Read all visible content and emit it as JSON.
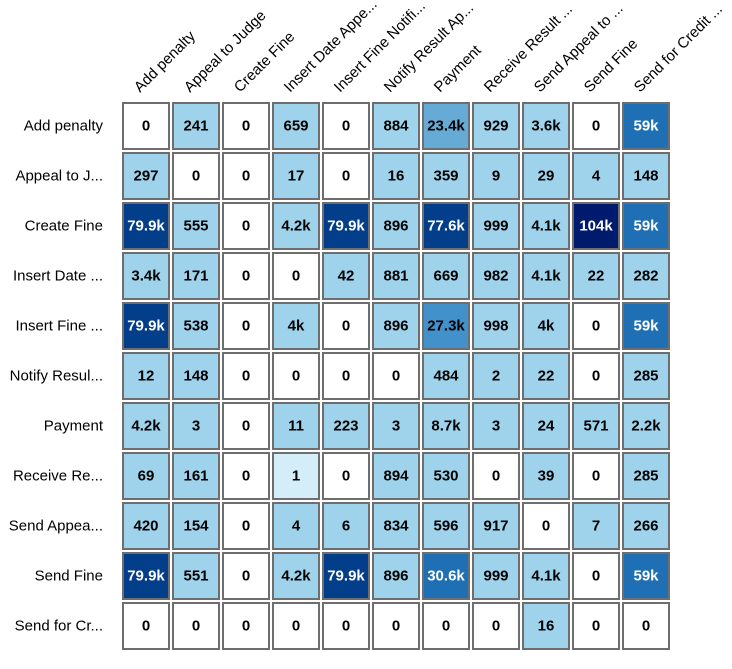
{
  "chart_data": {
    "type": "heatmap",
    "columns": [
      "Add penalty",
      "Appeal to Judge",
      "Create Fine",
      "Insert Date Appe...",
      "Insert Fine Notifi...",
      "Notify Result Ap...",
      "Payment",
      "Receive Result ...",
      "Send Appeal to ...",
      "Send Fine",
      "Send for Credit ..."
    ],
    "rows": [
      "Add penalty",
      "Appeal to J...",
      "Create Fine",
      "Insert Date ...",
      "Insert Fine ...",
      "Notify Resul...",
      "Payment",
      "Receive Re...",
      "Send Appea...",
      "Send Fine",
      "Send for Cr..."
    ],
    "values": [
      [
        0,
        241,
        0,
        659,
        0,
        884,
        23400,
        929,
        3600,
        0,
        59000
      ],
      [
        297,
        0,
        0,
        17,
        0,
        16,
        359,
        9,
        29,
        4,
        148
      ],
      [
        79900,
        555,
        0,
        4200,
        79900,
        896,
        77600,
        999,
        4100,
        104000,
        59000
      ],
      [
        3400,
        171,
        0,
        0,
        42,
        881,
        669,
        982,
        4100,
        22,
        282
      ],
      [
        79900,
        538,
        0,
        4000,
        0,
        896,
        27300,
        998,
        4000,
        0,
        59000
      ],
      [
        12,
        148,
        0,
        0,
        0,
        0,
        484,
        2,
        22,
        0,
        285
      ],
      [
        4200,
        3,
        0,
        11,
        223,
        3,
        8700,
        3,
        24,
        571,
        2200
      ],
      [
        69,
        161,
        0,
        1,
        0,
        894,
        530,
        0,
        39,
        0,
        285
      ],
      [
        420,
        154,
        0,
        4,
        6,
        834,
        596,
        917,
        0,
        7,
        266
      ],
      [
        79900,
        551,
        0,
        4200,
        79900,
        896,
        30600,
        999,
        4100,
        0,
        59000
      ],
      [
        0,
        0,
        0,
        0,
        0,
        0,
        0,
        0,
        16,
        0,
        0
      ]
    ],
    "labels": [
      [
        "0",
        "241",
        "0",
        "659",
        "0",
        "884",
        "23.4k",
        "929",
        "3.6k",
        "0",
        "59k"
      ],
      [
        "297",
        "0",
        "0",
        "17",
        "0",
        "16",
        "359",
        "9",
        "29",
        "4",
        "148"
      ],
      [
        "79.9k",
        "555",
        "0",
        "4.2k",
        "79.9k",
        "896",
        "77.6k",
        "999",
        "4.1k",
        "104k",
        "59k"
      ],
      [
        "3.4k",
        "171",
        "0",
        "0",
        "42",
        "881",
        "669",
        "982",
        "4.1k",
        "22",
        "282"
      ],
      [
        "79.9k",
        "538",
        "0",
        "4k",
        "0",
        "896",
        "27.3k",
        "998",
        "4k",
        "0",
        "59k"
      ],
      [
        "12",
        "148",
        "0",
        "0",
        "0",
        "0",
        "484",
        "2",
        "22",
        "0",
        "285"
      ],
      [
        "4.2k",
        "3",
        "0",
        "11",
        "223",
        "3",
        "8.7k",
        "3",
        "24",
        "571",
        "2.2k"
      ],
      [
        "69",
        "161",
        "0",
        "1",
        "0",
        "894",
        "530",
        "0",
        "39",
        "0",
        "285"
      ],
      [
        "420",
        "154",
        "0",
        "4",
        "6",
        "834",
        "596",
        "917",
        "0",
        "7",
        "266"
      ],
      [
        "79.9k",
        "551",
        "0",
        "4.2k",
        "79.9k",
        "896",
        "30.6k",
        "999",
        "4.1k",
        "0",
        "59k"
      ],
      [
        "0",
        "0",
        "0",
        "0",
        "0",
        "0",
        "0",
        "0",
        "16",
        "0",
        "0"
      ]
    ],
    "colors": {
      "zero": "#ffffff",
      "one": "#d4eef9",
      "low": "#9ed3eb",
      "mid": "#66abd6",
      "midhigh": "#4291cb",
      "high": "#1f6fb5",
      "veryhigh": "#023e8a",
      "max": "#001a6e",
      "border": "#6e6e6e",
      "text_dark": "#000000",
      "text_light": "#ffffff"
    },
    "legend": "none",
    "grid": false
  }
}
